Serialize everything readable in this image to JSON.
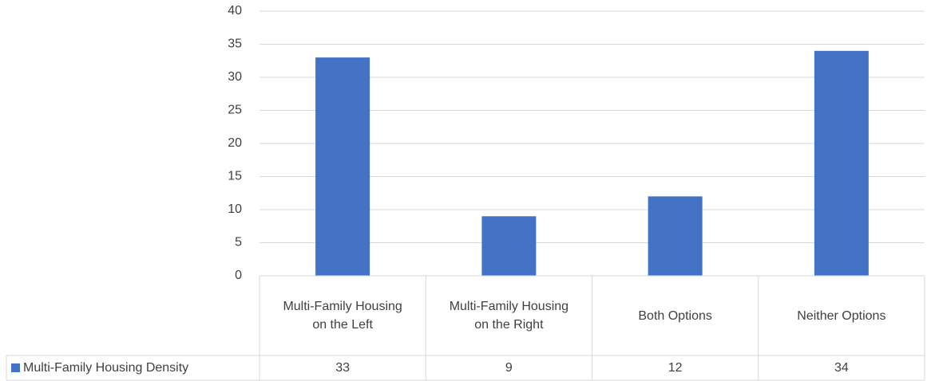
{
  "chart_data": {
    "type": "bar",
    "categories": [
      "Multi-Family Housing on the Left",
      "Multi-Family Housing on the Right",
      "Both Options",
      "Neither Options"
    ],
    "series": [
      {
        "name": "Multi-Family Housing Density",
        "color": "#4472c4",
        "values": [
          33,
          9,
          12,
          34
        ]
      }
    ],
    "ylim": [
      0,
      40
    ],
    "yticks": [
      0,
      5,
      10,
      15,
      20,
      25,
      30,
      35,
      40
    ],
    "grid": true,
    "data_table": true
  }
}
